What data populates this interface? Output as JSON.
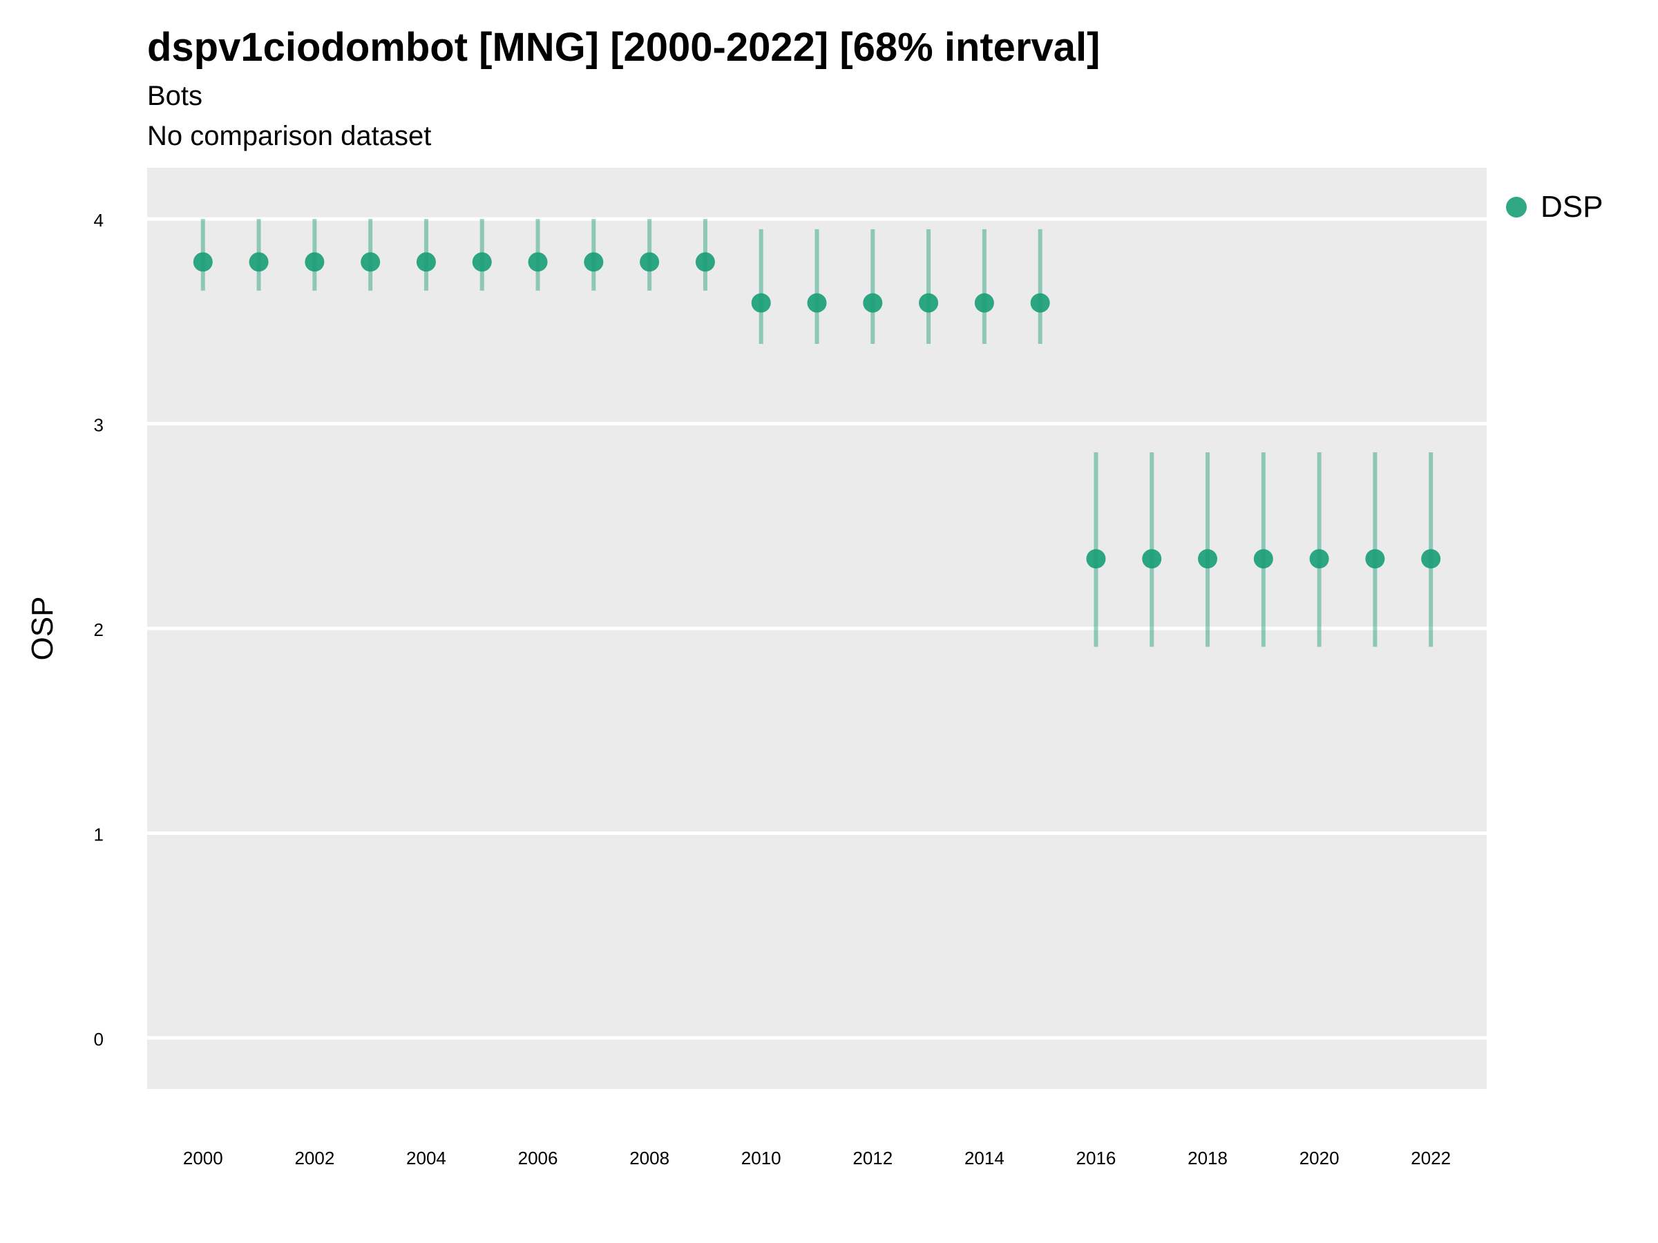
{
  "chart_data": {
    "type": "scatter",
    "title": "dspv1ciodombot [MNG] [2000-2022] [68% interval]",
    "subtitle": "Bots",
    "caption": "No comparison dataset",
    "xlabel": "",
    "ylabel": "OSP",
    "x_ticks": [
      2000,
      2002,
      2004,
      2006,
      2008,
      2010,
      2012,
      2014,
      2016,
      2018,
      2020,
      2022
    ],
    "y_ticks": [
      0,
      1,
      2,
      3,
      4
    ],
    "xlim": [
      1999,
      2023
    ],
    "ylim": [
      -0.25,
      4.25
    ],
    "grid": true,
    "legend_position": "top-right",
    "series": [
      {
        "name": "DSP",
        "color": "#1b9e77",
        "x": [
          2000,
          2001,
          2002,
          2003,
          2004,
          2005,
          2006,
          2007,
          2008,
          2009,
          2010,
          2011,
          2012,
          2013,
          2014,
          2015,
          2016,
          2017,
          2018,
          2019,
          2020,
          2021,
          2022
        ],
        "y": [
          3.79,
          3.79,
          3.79,
          3.79,
          3.79,
          3.79,
          3.79,
          3.79,
          3.79,
          3.79,
          3.59,
          3.59,
          3.59,
          3.59,
          3.59,
          3.59,
          2.34,
          2.34,
          2.34,
          2.34,
          2.34,
          2.34,
          2.34
        ],
        "lower": [
          3.65,
          3.65,
          3.65,
          3.65,
          3.65,
          3.65,
          3.65,
          3.65,
          3.65,
          3.65,
          3.39,
          3.39,
          3.39,
          3.39,
          3.39,
          3.39,
          1.91,
          1.91,
          1.91,
          1.91,
          1.91,
          1.91,
          1.91
        ],
        "upper": [
          4.0,
          4.0,
          4.0,
          4.0,
          4.0,
          4.0,
          4.0,
          4.0,
          4.0,
          4.0,
          3.95,
          3.95,
          3.95,
          3.95,
          3.95,
          3.95,
          2.86,
          2.86,
          2.86,
          2.86,
          2.86,
          2.86,
          2.86
        ]
      }
    ]
  }
}
